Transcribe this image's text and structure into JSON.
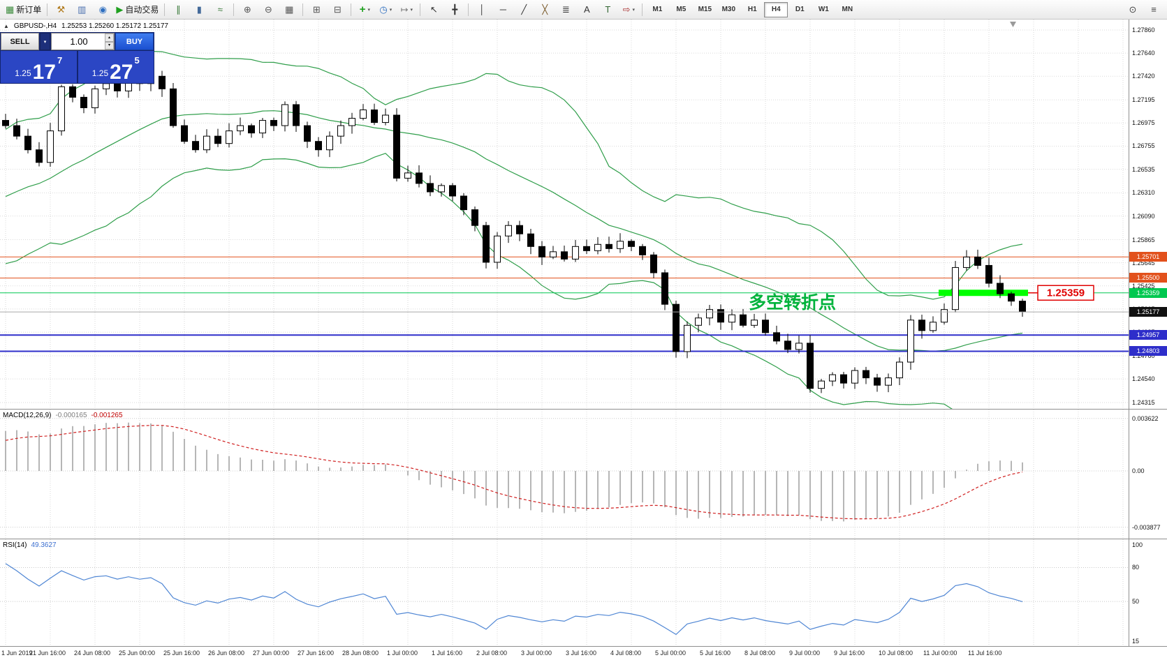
{
  "title": {
    "symbol_period": "GBPUSD-,H4",
    "ohlc": "1.25253 1.25260 1.25172 1.25177"
  },
  "trade_panel": {
    "sell_label": "SELL",
    "buy_label": "BUY",
    "lot_size": "1.00",
    "bid_base": "1.25",
    "bid_big": "17",
    "bid_sup": "7",
    "ask_base": "1.25",
    "ask_big": "27",
    "ask_sup": "5"
  },
  "toolbar": {
    "groups": [
      [
        {
          "name": "new-order-button",
          "icon": "new-order-icon",
          "glyph": "▦",
          "color": "#3a8a3a",
          "label": "新订单"
        }
      ],
      [
        {
          "name": "strategy-tester-button",
          "icon": "hammer-icon",
          "glyph": "⚒",
          "color": "#b07818"
        },
        {
          "name": "chart-window-button",
          "icon": "chart-window-icon",
          "glyph": "▥",
          "color": "#4a6fae"
        },
        {
          "name": "market-watch-button",
          "icon": "market-watch-icon",
          "glyph": "◉",
          "color": "#2f6fc0"
        },
        {
          "name": "auto-trading-button",
          "icon": "play-icon",
          "glyph": "▶",
          "color": "#1ea01e",
          "label": "自动交易"
        }
      ],
      [
        {
          "name": "bar-chart-type-button",
          "icon": "ohlc-bars-icon",
          "glyph": "∥",
          "color": "#3a7a3a"
        },
        {
          "name": "candlestick-type-button",
          "icon": "candlestick-icon",
          "glyph": "▮",
          "color": "#446a9a"
        },
        {
          "name": "line-chart-type-button",
          "icon": "line-chart-icon",
          "glyph": "≈",
          "color": "#3a7a3a"
        }
      ],
      [
        {
          "name": "zoom-in-button",
          "icon": "zoom-in-icon",
          "glyph": "⊕",
          "color": "#555555"
        },
        {
          "name": "zoom-out-button",
          "icon": "zoom-out-icon",
          "glyph": "⊖",
          "color": "#555555"
        },
        {
          "name": "grid-toggle-button",
          "icon": "grid-icon",
          "glyph": "▦",
          "color": "#555555"
        }
      ],
      [
        {
          "name": "tile-windows-button",
          "icon": "tile-windows-icon",
          "glyph": "⊞",
          "color": "#555555"
        },
        {
          "name": "cascade-windows-button",
          "icon": "cascade-windows-icon",
          "glyph": "⊟",
          "color": "#555555"
        }
      ],
      [
        {
          "name": "indicators-button",
          "icon": "indicator-plus-icon",
          "glyph": "+",
          "color": "#1ea01e",
          "dropdown": true
        },
        {
          "name": "periods-button",
          "icon": "clock-icon",
          "glyph": "◷",
          "color": "#2f6fc0",
          "dropdown": true
        },
        {
          "name": "templates-button",
          "icon": "template-icon",
          "glyph": "↦",
          "color": "#777777",
          "dropdown": true
        }
      ],
      [
        {
          "name": "cursor-tool-button",
          "icon": "cursor-icon",
          "glyph": "↖",
          "color": "#333333"
        },
        {
          "name": "crosshair-tool-button",
          "icon": "crosshair-icon",
          "glyph": "╋",
          "color": "#333333"
        }
      ],
      [
        {
          "name": "vertical-line-tool-button",
          "icon": "vertical-line-icon",
          "glyph": "│",
          "color": "#333333"
        },
        {
          "name": "horizontal-line-tool-button",
          "icon": "horizontal-line-icon",
          "glyph": "─",
          "color": "#333333"
        },
        {
          "name": "trendline-tool-button",
          "icon": "trendline-icon",
          "glyph": "╱",
          "color": "#333333"
        },
        {
          "name": "fibonacci-tool-button",
          "icon": "fibonacci-icon",
          "glyph": "╳",
          "color": "#7a5a2a"
        },
        {
          "name": "channel-tool-button",
          "icon": "channel-icon",
          "glyph": "≣",
          "color": "#333333"
        },
        {
          "name": "text-tool-button",
          "icon": "text-icon",
          "glyph": "A",
          "color": "#333333"
        },
        {
          "name": "label-tool-button",
          "icon": "label-icon",
          "glyph": "T",
          "color": "#336633"
        },
        {
          "name": "shapes-tool-button",
          "icon": "arrows-icon",
          "glyph": "⇨",
          "color": "#aa3333",
          "dropdown": true
        }
      ]
    ],
    "timeframes": [
      "M1",
      "M5",
      "M15",
      "M30",
      "H1",
      "H4",
      "D1",
      "W1",
      "MN"
    ],
    "active_timeframe": "H4",
    "right_icons": [
      {
        "name": "quick-search-button",
        "icon": "search-icon",
        "glyph": "⊙"
      },
      {
        "name": "toolbox-button",
        "icon": "menu-icon",
        "glyph": "≡"
      }
    ]
  },
  "chart_data": [
    {
      "id": "main",
      "type": "candlestick",
      "symbol": "GBPUSD-",
      "timeframe": "H4",
      "price_top": 1.2786,
      "price_bottom": 1.24315,
      "y_ticks": [
        "1.27860",
        "1.27640",
        "1.27420",
        "1.27195",
        "1.26975",
        "1.26755",
        "1.26535",
        "1.26310",
        "1.26090",
        "1.25865",
        "1.25645",
        "1.25425",
        "1.25205",
        "1.24985",
        "1.24760",
        "1.24540",
        "1.24315"
      ],
      "x_labels": [
        "1 Jun 2019",
        "21 Jun 16:00",
        "24 Jun 08:00",
        "25 Jun 00:00",
        "25 Jun 16:00",
        "26 Jun 08:00",
        "27 Jun 00:00",
        "27 Jun 16:00",
        "28 Jun 08:00",
        "1 Jul 00:00",
        "1 Jul 16:00",
        "2 Jul 08:00",
        "3 Jul 00:00",
        "3 Jul 16:00",
        "4 Jul 08:00",
        "5 Jul 00:00",
        "5 Jul 16:00",
        "8 Jul 08:00",
        "9 Jul 00:00",
        "9 Jul 16:00",
        "10 Jul 08:00",
        "11 Jul 00:00",
        "11 Jul 16:00"
      ],
      "first_open": 1.27,
      "warmup_closes": [
        1.256,
        1.2572,
        1.2568,
        1.258,
        1.2576,
        1.2589,
        1.2584,
        1.2596,
        1.2591,
        1.2604,
        1.2599,
        1.2612,
        1.2607,
        1.262,
        1.2615,
        1.2628,
        1.2623,
        1.2637,
        1.2632,
        1.2646,
        1.2652,
        1.2661,
        1.267,
        1.269
      ],
      "closes": [
        1.2695,
        1.2685,
        1.2672,
        1.266,
        1.269,
        1.2732,
        1.2722,
        1.2712,
        1.273,
        1.2735,
        1.2728,
        1.274,
        1.2735,
        1.2742,
        1.273,
        1.2695,
        1.268,
        1.2672,
        1.2685,
        1.2678,
        1.269,
        1.2695,
        1.2688,
        1.27,
        1.2695,
        1.2715,
        1.2695,
        1.268,
        1.2672,
        1.2685,
        1.2695,
        1.2702,
        1.271,
        1.2698,
        1.2705,
        1.2645,
        1.265,
        1.264,
        1.2632,
        1.2638,
        1.2628,
        1.2615,
        1.26,
        1.2565,
        1.259,
        1.26,
        1.2592,
        1.258,
        1.257,
        1.2575,
        1.2568,
        1.258,
        1.2576,
        1.2582,
        1.2578,
        1.2585,
        1.258,
        1.2572,
        1.2555,
        1.2525,
        1.248,
        1.2505,
        1.2512,
        1.252,
        1.2508,
        1.2515,
        1.2505,
        1.251,
        1.2498,
        1.249,
        1.2482,
        1.2488,
        1.2445,
        1.2452,
        1.2458,
        1.245,
        1.2462,
        1.2455,
        1.2448,
        1.2455,
        1.247,
        1.251,
        1.25,
        1.2508,
        1.252,
        1.256,
        1.257,
        1.2562,
        1.2545,
        1.2535,
        1.2528,
        1.2518
      ],
      "candle_up_color": "#ffffff",
      "candle_down_color": "#000000",
      "bollinger": {
        "period": 20,
        "deviation": 2,
        "color": "#2f9e4a"
      },
      "levels": [
        {
          "price": 1.25701,
          "label": "1.25701",
          "color": "#e2511c",
          "width": 1,
          "badge_fg": "#ffffff"
        },
        {
          "price": 1.255,
          "label": "1.25500",
          "color": "#e2511c",
          "width": 1,
          "badge_fg": "#ffffff"
        },
        {
          "price": 1.25359,
          "label": "1.25359",
          "color": "#00c850",
          "width": 1,
          "badge_fg": "#ffffff"
        },
        {
          "price": 1.24957,
          "label": "1.24957",
          "color": "#2e2eca",
          "width": 2,
          "badge_fg": "#ffffff"
        },
        {
          "price": 1.24803,
          "label": "1.24803",
          "color": "#2e2eca",
          "width": 2,
          "badge_fg": "#ffffff"
        }
      ],
      "current": {
        "price": 1.25177,
        "label": "1.25177",
        "line_color": "#a8a8a8",
        "badge_bg": "#111111"
      },
      "highlight": {
        "start": 84,
        "end": 91,
        "price": 1.25359,
        "color": "#00ff00"
      },
      "callout": {
        "text": "1.25359",
        "color": "#e00000"
      },
      "annotation": {
        "text": "多空转折点",
        "color": "#00b33c"
      }
    },
    {
      "id": "macd",
      "type": "macd",
      "name": "MACD(12,26,9)",
      "value_main": "-0.000165",
      "value_signal": "-0.001265",
      "fast": 12,
      "slow": 26,
      "signal": 9,
      "scale": {
        "top": 0.003622,
        "top_label": "0.003622",
        "zero_label": "0.00",
        "bottom": -0.003877,
        "bottom_label": "-0.003877"
      },
      "histogram_color": "#b6b6b6",
      "signal_color": "#d02020"
    },
    {
      "id": "rsi",
      "type": "line",
      "name": "RSI(14)",
      "value": "49.3627",
      "period": 14,
      "range": [
        15,
        100
      ],
      "levels": [
        80,
        50
      ],
      "scale_labels": [
        "100",
        "80",
        "50",
        "15"
      ],
      "color": "#4f86d4"
    }
  ]
}
